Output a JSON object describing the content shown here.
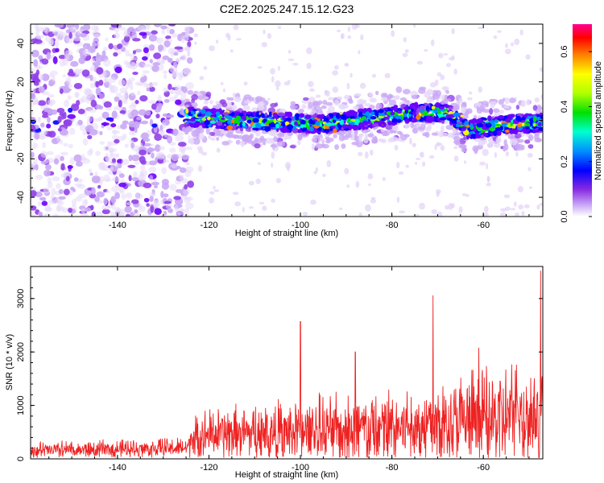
{
  "chart_data": [
    {
      "type": "heatmap",
      "title": "C2E2.2025.247.15.12.G23",
      "xlabel": "Height of straight line (km)",
      "ylabel": "Frequency (Hz)",
      "xlim": [
        -159,
        -47
      ],
      "ylim": [
        -50,
        50
      ],
      "xticks": [
        -140,
        -120,
        -100,
        -80,
        -60
      ],
      "yticks": [
        -40,
        -20,
        0,
        20,
        40
      ],
      "colorbar": {
        "label": "Normalized spectral amplitude",
        "range": [
          0,
          0.7
        ],
        "ticks": [
          0.0,
          0.2,
          0.4,
          0.6
        ],
        "colors": [
          "#d9c6f5",
          "#a060f0",
          "#6a00ff",
          "#0000ff",
          "#00a0ff",
          "#00ffcc",
          "#00e000",
          "#a0ff00",
          "#ffff00",
          "#ff8000",
          "#ff0000",
          "#ff0080"
        ]
      },
      "features": {
        "noise_region_x": [
          -159,
          -125
        ],
        "signal_band_start_x": -125,
        "ridge": [
          {
            "x": -125,
            "y": 2
          },
          {
            "x": -115,
            "y": 0
          },
          {
            "x": -105,
            "y": -1
          },
          {
            "x": -95,
            "y": -2
          },
          {
            "x": -85,
            "y": 1
          },
          {
            "x": -75,
            "y": 4
          },
          {
            "x": -68,
            "y": 4
          },
          {
            "x": -63,
            "y": -5
          },
          {
            "x": -55,
            "y": -2
          },
          {
            "x": -47,
            "y": -1
          }
        ]
      }
    },
    {
      "type": "line",
      "xlabel": "Height of straight line (km)",
      "ylabel": "SNR (10 * v/v)",
      "xlim": [
        -159,
        -47
      ],
      "ylim": [
        0,
        3600
      ],
      "xticks": [
        -140,
        -120,
        -100,
        -80,
        -60
      ],
      "yticks": [
        0,
        1000,
        2000,
        3000
      ],
      "color": "#ee2222",
      "envelope": [
        {
          "x": -159,
          "base": 150,
          "amp": 200
        },
        {
          "x": -125,
          "base": 200,
          "amp": 250
        },
        {
          "x": -122,
          "base": 450,
          "amp": 600
        },
        {
          "x": -100,
          "base": 500,
          "amp": 800
        },
        {
          "x": -85,
          "base": 550,
          "amp": 900
        },
        {
          "x": -70,
          "base": 650,
          "amp": 1100
        },
        {
          "x": -47,
          "base": 800,
          "amp": 1400
        }
      ],
      "peaks": [
        {
          "x": -100,
          "y": 2570
        },
        {
          "x": -71,
          "y": 3060
        },
        {
          "x": -47.5,
          "y": 3520
        },
        {
          "x": -61,
          "y": 2080
        },
        {
          "x": -88,
          "y": 2000
        }
      ]
    }
  ]
}
